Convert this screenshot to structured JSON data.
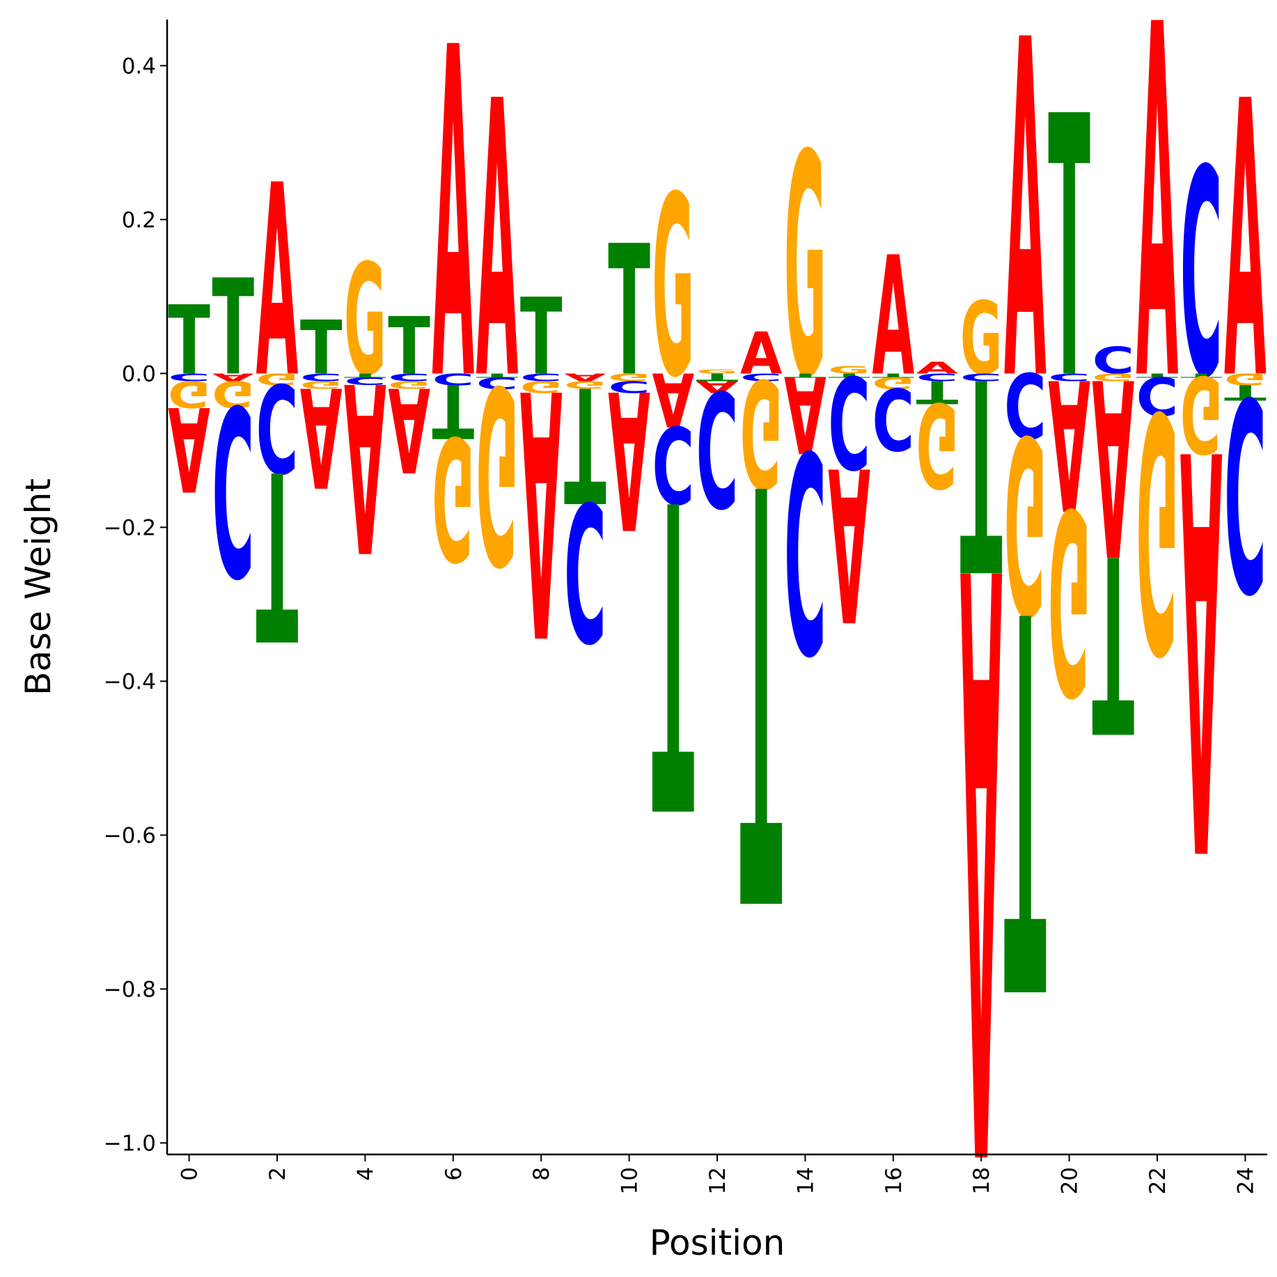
{
  "chart_data": {
    "type": "sequence-logo",
    "xlabel": "Position",
    "ylabel": "Base Weight",
    "xlim": [
      -0.5,
      24.5
    ],
    "ylim": [
      -1.015,
      0.46
    ],
    "x_ticks": [
      0,
      2,
      4,
      6,
      8,
      10,
      12,
      14,
      16,
      18,
      20,
      22,
      24
    ],
    "x_tick_labels": [
      "0",
      "2",
      "4",
      "6",
      "8",
      "10",
      "12",
      "14",
      "16",
      "18",
      "20",
      "22",
      "24"
    ],
    "y_ticks": [
      0.4,
      0.2,
      0.0,
      -0.2,
      -0.4,
      -0.6,
      -0.8,
      -1.0
    ],
    "y_tick_labels": [
      "0.4",
      "0.2",
      "0.0",
      "−0.2",
      "−0.4",
      "−0.6",
      "−0.8",
      "−1.0"
    ],
    "colors": {
      "A": "#ff0000",
      "C": "#0000ff",
      "G": "#ffa500",
      "T": "#008000"
    },
    "positions": [
      {
        "pos": 0,
        "weights": {
          "A": -0.11,
          "C": -0.01,
          "G": -0.035,
          "T": 0.09
        }
      },
      {
        "pos": 1,
        "weights": {
          "A": -0.01,
          "C": -0.22,
          "G": -0.035,
          "T": 0.125
        }
      },
      {
        "pos": 2,
        "weights": {
          "A": 0.25,
          "C": -0.115,
          "G": -0.015,
          "T": -0.22
        }
      },
      {
        "pos": 3,
        "weights": {
          "A": -0.13,
          "C": -0.01,
          "G": -0.01,
          "T": 0.07
        }
      },
      {
        "pos": 4,
        "weights": {
          "A": -0.22,
          "C": -0.01,
          "G": 0.145,
          "T": -0.005
        }
      },
      {
        "pos": 5,
        "weights": {
          "A": -0.11,
          "C": -0.01,
          "G": -0.01,
          "T": 0.075
        }
      },
      {
        "pos": 6,
        "weights": {
          "A": 0.43,
          "C": -0.015,
          "G": -0.16,
          "T": -0.07
        }
      },
      {
        "pos": 7,
        "weights": {
          "A": 0.36,
          "C": -0.015,
          "G": -0.23,
          "T": -0.005
        }
      },
      {
        "pos": 8,
        "weights": {
          "A": -0.32,
          "C": -0.01,
          "G": -0.015,
          "T": 0.1
        }
      },
      {
        "pos": 9,
        "weights": {
          "A": -0.01,
          "C": -0.18,
          "G": -0.01,
          "T": -0.15
        }
      },
      {
        "pos": 10,
        "weights": {
          "A": -0.18,
          "C": -0.015,
          "G": -0.01,
          "T": 0.17
        }
      },
      {
        "pos": 11,
        "weights": {
          "A": -0.07,
          "C": -0.1,
          "G": 0.235,
          "T": -0.4
        }
      },
      {
        "pos": 12,
        "weights": {
          "A": -0.015,
          "C": -0.15,
          "G": 0.005,
          "T": -0.01
        }
      },
      {
        "pos": 13,
        "weights": {
          "A": 0.055,
          "C": -0.01,
          "G": -0.14,
          "T": -0.54
        }
      },
      {
        "pos": 14,
        "weights": {
          "A": -0.1,
          "C": -0.26,
          "G": 0.29,
          "T": -0.005
        }
      },
      {
        "pos": 15,
        "weights": {
          "A": -0.2,
          "C": -0.12,
          "G": 0.01,
          "T": -0.005
        }
      },
      {
        "pos": 16,
        "weights": {
          "A": 0.155,
          "C": -0.08,
          "G": -0.015,
          "T": -0.005
        }
      },
      {
        "pos": 17,
        "weights": {
          "A": 0.015,
          "C": -0.01,
          "G": -0.11,
          "T": -0.03
        }
      },
      {
        "pos": 18,
        "weights": {
          "A": -0.76,
          "C": -0.01,
          "G": 0.095,
          "T": -0.25
        }
      },
      {
        "pos": 19,
        "weights": {
          "A": 0.44,
          "C": -0.085,
          "G": -0.23,
          "T": -0.49
        }
      },
      {
        "pos": 20,
        "weights": {
          "A": -0.17,
          "C": -0.01,
          "G": -0.24,
          "T": 0.34
        }
      },
      {
        "pos": 21,
        "weights": {
          "A": -0.23,
          "C": 0.035,
          "G": -0.01,
          "T": -0.23
        }
      },
      {
        "pos": 22,
        "weights": {
          "A": 0.46,
          "C": -0.05,
          "G": -0.31,
          "T": -0.005
        }
      },
      {
        "pos": 23,
        "weights": {
          "A": -0.52,
          "C": 0.27,
          "G": -0.1,
          "T": -0.005
        }
      },
      {
        "pos": 24,
        "weights": {
          "A": 0.36,
          "C": -0.25,
          "G": -0.015,
          "T": -0.02
        }
      }
    ]
  }
}
